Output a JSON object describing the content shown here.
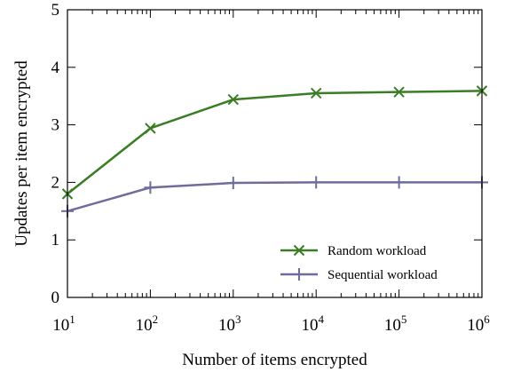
{
  "chart_data": {
    "type": "line",
    "xlabel": "Number of items encrypted",
    "ylabel": "Updates per item encrypted",
    "xscale": "log",
    "xlim": [
      10,
      1000000
    ],
    "ylim": [
      0,
      5
    ],
    "x_ticks": [
      {
        "value": 10,
        "base": "10",
        "exp": "1"
      },
      {
        "value": 100,
        "base": "10",
        "exp": "2"
      },
      {
        "value": 1000,
        "base": "10",
        "exp": "3"
      },
      {
        "value": 10000,
        "base": "10",
        "exp": "4"
      },
      {
        "value": 100000,
        "base": "10",
        "exp": "5"
      },
      {
        "value": 1000000,
        "base": "10",
        "exp": "6"
      }
    ],
    "y_ticks": [
      "0",
      "1",
      "2",
      "3",
      "4",
      "5"
    ],
    "grid": false,
    "legend_position": "bottom-right",
    "x": [
      10,
      100,
      1000,
      10000,
      100000,
      1000000
    ],
    "series": [
      {
        "name": "Random workload",
        "color": "#3a7d24",
        "marker": "x",
        "values": [
          1.8,
          2.94,
          3.44,
          3.55,
          3.57,
          3.59
        ]
      },
      {
        "name": "Sequential workload",
        "color": "#6f6c9c",
        "marker": "plus",
        "values": [
          1.5,
          1.91,
          1.99,
          2.0,
          2.0,
          2.0
        ]
      }
    ]
  }
}
